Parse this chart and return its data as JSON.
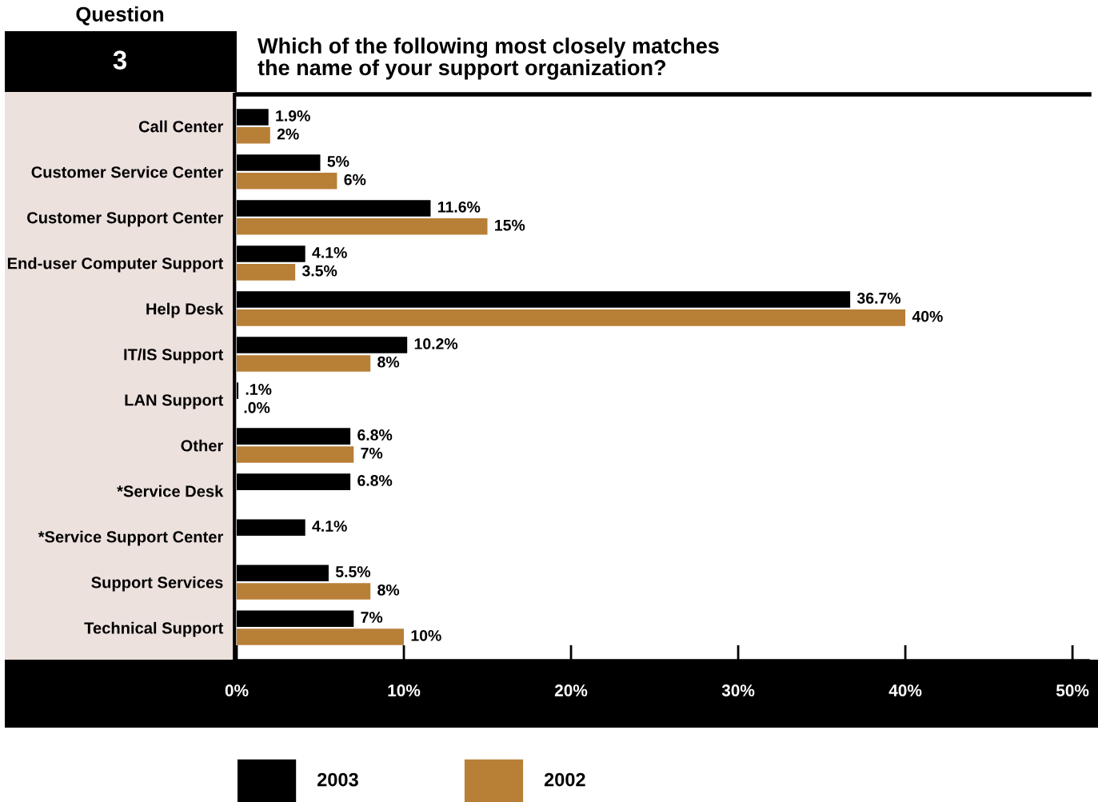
{
  "chart_data": {
    "type": "bar",
    "orientation": "horizontal",
    "title": "Which of the following most closely matches\nthe name of your support organization?",
    "annotations": [
      "Question",
      "3"
    ],
    "categories": [
      "Call Center",
      "Customer Service Center",
      "Customer Support Center",
      "End-user Computer Support",
      "Help Desk",
      "IT/IS Support",
      "LAN Support",
      "Other",
      "*Service Desk",
      "*Service Support Center",
      "Support Services",
      "Technical Support"
    ],
    "series": [
      {
        "name": "2003",
        "color": "#000000",
        "values": [
          1.9,
          5,
          11.6,
          4.1,
          36.7,
          10.2,
          0.1,
          6.8,
          6.8,
          4.1,
          5.5,
          7
        ],
        "value_labels": [
          "1.9%",
          "5%",
          "11.6%",
          "4.1%",
          "36.7%",
          "10.2%",
          ".1%",
          "6.8%",
          "6.8%",
          "4.1%",
          "5.5%",
          "7%"
        ]
      },
      {
        "name": "2002",
        "color": "#b87f37",
        "values": [
          2,
          6,
          15,
          3.5,
          40,
          8,
          0.0,
          7,
          null,
          null,
          8,
          10
        ],
        "value_labels": [
          "2%",
          "6%",
          "15%",
          "3.5%",
          "40%",
          "8%",
          ".0%",
          "7%",
          null,
          null,
          "8%",
          "10%"
        ]
      }
    ],
    "xlim": [
      0,
      51
    ],
    "xticks": [
      {
        "value": 0,
        "label": "0%"
      },
      {
        "value": 10,
        "label": "10%"
      },
      {
        "value": 20,
        "label": "20%"
      },
      {
        "value": 30,
        "label": "30%"
      },
      {
        "value": 40,
        "label": "40%"
      },
      {
        "value": 50,
        "label": "50%"
      }
    ],
    "legend": "bottom"
  }
}
